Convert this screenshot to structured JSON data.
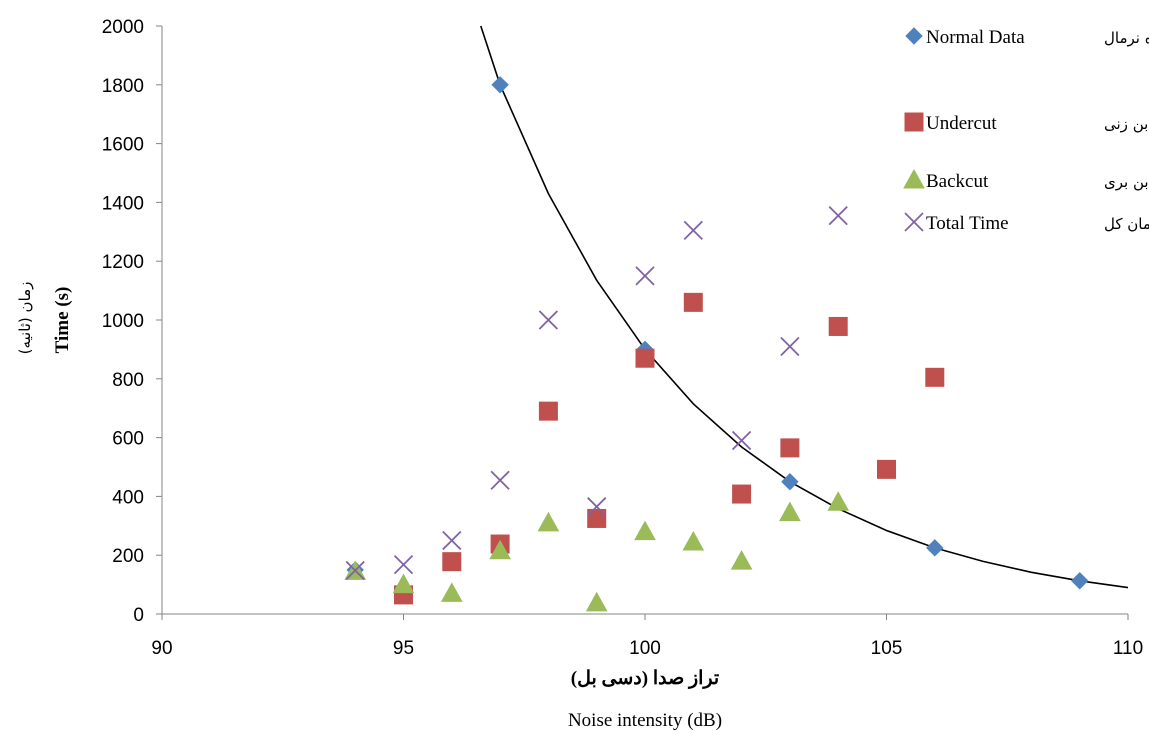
{
  "chart_data": {
    "type": "scatter",
    "xlabel_fa": "تراز صدا (دسی بل)",
    "xlabel_en": "Noise intensity (dB)",
    "ylabel_fa": "زمان (ثانیه)",
    "ylabel_en": "Time (s)",
    "xlim": [
      90,
      110
    ],
    "ylim": [
      0,
      2000
    ],
    "x_ticks": [
      90,
      95,
      100,
      105,
      110
    ],
    "y_ticks": [
      0,
      200,
      400,
      600,
      800,
      1000,
      1200,
      1400,
      1600,
      1800,
      2000
    ],
    "grid": false,
    "legend_position": "top-right",
    "series": [
      {
        "name": "Normal Data",
        "name_fa": "داده نرمال",
        "marker": "diamond",
        "color": "#4f81bd",
        "points": [
          [
            94,
            150
          ],
          [
            97,
            1800
          ],
          [
            100,
            900
          ],
          [
            103,
            450
          ],
          [
            106,
            225
          ],
          [
            109,
            113
          ]
        ]
      },
      {
        "name": "Undercut",
        "name_fa": "زمان بن زنی",
        "marker": "square",
        "color": "#c0504d",
        "points": [
          [
            95,
            65
          ],
          [
            96,
            178
          ],
          [
            97,
            238
          ],
          [
            98,
            690
          ],
          [
            99,
            325
          ],
          [
            100,
            870
          ],
          [
            101,
            1060
          ],
          [
            102,
            408
          ],
          [
            103,
            565
          ],
          [
            104,
            978
          ],
          [
            105,
            492
          ],
          [
            106,
            805
          ]
        ]
      },
      {
        "name": "Backcut",
        "name_fa": "زمان بن بری",
        "marker": "triangle",
        "color": "#9bbb59",
        "points": [
          [
            94,
            145
          ],
          [
            95,
            100
          ],
          [
            96,
            70
          ],
          [
            97,
            215
          ],
          [
            98,
            310
          ],
          [
            99,
            38
          ],
          [
            100,
            280
          ],
          [
            101,
            245
          ],
          [
            102,
            180
          ],
          [
            103,
            345
          ],
          [
            104,
            380
          ]
        ]
      },
      {
        "name": "Total Time",
        "name_fa": "زمان کل",
        "marker": "x",
        "color": "#8064a2",
        "points": [
          [
            94,
            148
          ],
          [
            95,
            168
          ],
          [
            96,
            250
          ],
          [
            97,
            455
          ],
          [
            98,
            1000
          ],
          [
            99,
            365
          ],
          [
            100,
            1150
          ],
          [
            101,
            1305
          ],
          [
            102,
            590
          ],
          [
            103,
            910
          ],
          [
            104,
            1355
          ]
        ]
      }
    ],
    "trendline": {
      "type": "exponential",
      "color": "#000000",
      "points": [
        [
          96.6,
          2000
        ],
        [
          97,
          1800
        ],
        [
          98,
          1430
        ],
        [
          99,
          1135
        ],
        [
          100,
          900
        ],
        [
          101,
          715
        ],
        [
          102,
          568
        ],
        [
          103,
          450
        ],
        [
          104,
          358
        ],
        [
          105,
          284
        ],
        [
          106,
          225
        ],
        [
          107,
          179
        ],
        [
          108,
          142
        ],
        [
          109,
          113
        ],
        [
          110,
          89.7
        ]
      ]
    }
  }
}
